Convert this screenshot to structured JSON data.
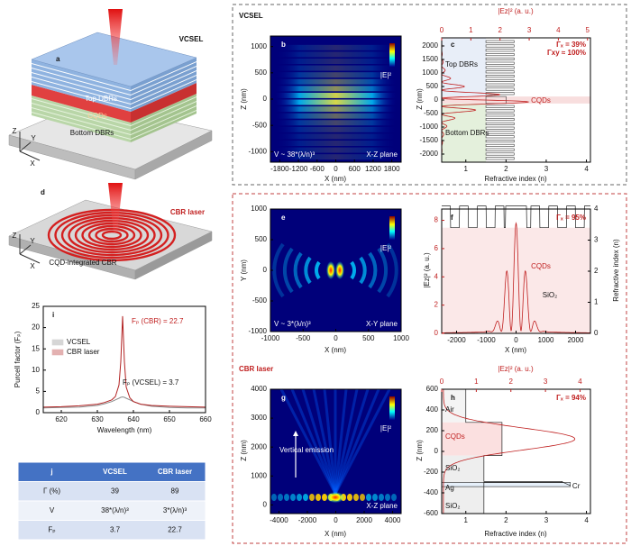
{
  "panel_a": {
    "label": "a",
    "title": "VCSEL",
    "top": "Top DBRs",
    "middle": "CQDs",
    "bottom": "Bottom DBRs",
    "axis_z": "Z",
    "axis_y": "Y",
    "axis_x": "X"
  },
  "panel_d": {
    "label": "d",
    "title": "CBR laser",
    "caption": "CQD-integrated CBR",
    "axis_z": "Z",
    "axis_y": "Y",
    "axis_x": "X"
  },
  "vcsel_box_title": "VCSEL",
  "cbr_box_title": "CBR laser",
  "panel_b": {
    "label": "b",
    "xlabel": "X (nm)",
    "ylabel": "Z (nm)",
    "xlim": [
      -2100,
      2100
    ],
    "ylim": [
      -1200,
      1200
    ],
    "xticks": [
      -1800,
      -1200,
      -600,
      0,
      600,
      1200,
      1800
    ],
    "yticks": [
      -1000,
      -500,
      0,
      500,
      1000
    ],
    "colorbar": "|E|²",
    "volume": "V ~ 38*(λ/n)³",
    "plane": "X-Z plane"
  },
  "panel_c": {
    "label": "c",
    "xlabel": "Refractive index (n)",
    "x2label": "|Ez|² (a. u.)",
    "ylabel": "Z (nm)",
    "xlim": [
      0.4,
      4.1
    ],
    "xticks": [
      1,
      2,
      3,
      4
    ],
    "x2lim": [
      0,
      5.1
    ],
    "x2ticks": [
      0,
      1,
      2,
      3,
      4,
      5
    ],
    "ylim": [
      -2300,
      2300
    ],
    "yticks": [
      -2000,
      -1500,
      -1000,
      -500,
      0,
      500,
      1000,
      1500,
      2000
    ],
    "confinement": [
      "Γₓ = 39%",
      "Γxy ≈ 100%"
    ],
    "region_top": "Top DBRs",
    "region_mid": "CQDs",
    "region_bottom": "Bottom DBRs"
  },
  "panel_e": {
    "label": "e",
    "xlabel": "X (nm)",
    "ylabel": "Y (nm)",
    "xlim": [
      -1000,
      1000
    ],
    "ylim": [
      -1000,
      1000
    ],
    "xticks": [
      -1000,
      -500,
      0,
      500,
      1000
    ],
    "yticks": [
      -1000,
      -500,
      0,
      500,
      1000
    ],
    "colorbar": "|E|²",
    "volume": "V ~ 3*(λ/n)³",
    "plane": "X-Y plane"
  },
  "panel_f": {
    "label": "f",
    "xlabel": "X (nm)",
    "ylabel": "|Ez|² (a. u.)",
    "y2label": "Refractive index (n)",
    "xlim": [
      -2500,
      2500
    ],
    "xticks": [
      -2000,
      -1000,
      0,
      1000,
      2000
    ],
    "ylim": [
      0,
      8.8
    ],
    "yticks": [
      0,
      2,
      4,
      6,
      8
    ],
    "y2lim": [
      0,
      4
    ],
    "y2ticks": [
      0,
      1,
      2,
      3,
      4
    ],
    "confinement": "Γₓ = 95%",
    "layer_top": "CQDs",
    "layer_bottom": "SiO₂"
  },
  "panel_g": {
    "label": "g",
    "xlabel": "X (nm)",
    "ylabel": "Z (nm)",
    "xlim": [
      -4600,
      4600
    ],
    "ylim": [
      -300,
      4000
    ],
    "xticks": [
      -4000,
      -2000,
      0,
      2000,
      4000
    ],
    "yticks": [
      0,
      1000,
      2000,
      3000,
      4000
    ],
    "colorbar": "|E|²",
    "annotation": "Vertical emission",
    "plane": "X-Z plane"
  },
  "panel_h": {
    "label": "h",
    "xlabel": "Refractive index (n)",
    "x2label": "|Ez|² (a. u.)",
    "ylabel": "Z (nm)",
    "xlim": [
      0.4,
      4.1
    ],
    "xticks": [
      1,
      2,
      3,
      4
    ],
    "x2lim": [
      0,
      4.3
    ],
    "x2ticks": [
      0,
      1,
      2,
      3,
      4
    ],
    "ylim": [
      -600,
      600
    ],
    "yticks": [
      -600,
      -400,
      -200,
      0,
      200,
      400,
      600
    ],
    "confinement": "Γₓ = 94%",
    "layers": [
      "Air",
      "CQDs",
      "SiO₂",
      "Ag",
      "SiO₂"
    ],
    "metal": "Cr"
  },
  "chart_data": {
    "type": "line",
    "label": "i",
    "xlabel": "Wavelength (nm)",
    "ylabel": "Purcell factor (Fₚ)",
    "x": [
      615,
      620,
      625,
      630,
      632,
      634,
      635,
      636,
      636.5,
      637,
      637.5,
      638,
      639,
      640,
      642,
      645,
      650,
      655,
      660
    ],
    "series": [
      {
        "name": "VCSEL",
        "color": "#8c8c8c",
        "values": [
          1.1,
          1.2,
          1.3,
          1.7,
          2.1,
          2.6,
          3.0,
          3.4,
          3.6,
          3.7,
          3.6,
          3.4,
          3.0,
          2.6,
          2.0,
          1.5,
          1.2,
          1.1,
          1.1
        ]
      },
      {
        "name": "CBR laser",
        "color": "#b22222",
        "values": [
          1.3,
          1.4,
          1.6,
          2.0,
          2.4,
          3.0,
          3.8,
          6.5,
          12,
          22.7,
          12,
          6,
          3.5,
          2.6,
          2.0,
          1.7,
          1.5,
          1.4,
          1.3
        ]
      }
    ],
    "xlim": [
      615,
      660
    ],
    "xticks": [
      620,
      630,
      640,
      650,
      660
    ],
    "ylim": [
      0,
      25
    ],
    "yticks": [
      0,
      5,
      10,
      15,
      20,
      25
    ],
    "annotations": [
      "Fₚ (CBR) = 22.7",
      "Fₚ (VCSEL) = 3.7"
    ]
  },
  "table": {
    "header": [
      "j",
      "VCSEL",
      "CBR laser"
    ],
    "rows": [
      [
        "Γ (%)",
        "39",
        "89"
      ],
      [
        "V",
        "38*(λ/n)³",
        "3*(λ/n)³"
      ],
      [
        "Fₚ",
        "3.7",
        "22.7"
      ]
    ]
  }
}
